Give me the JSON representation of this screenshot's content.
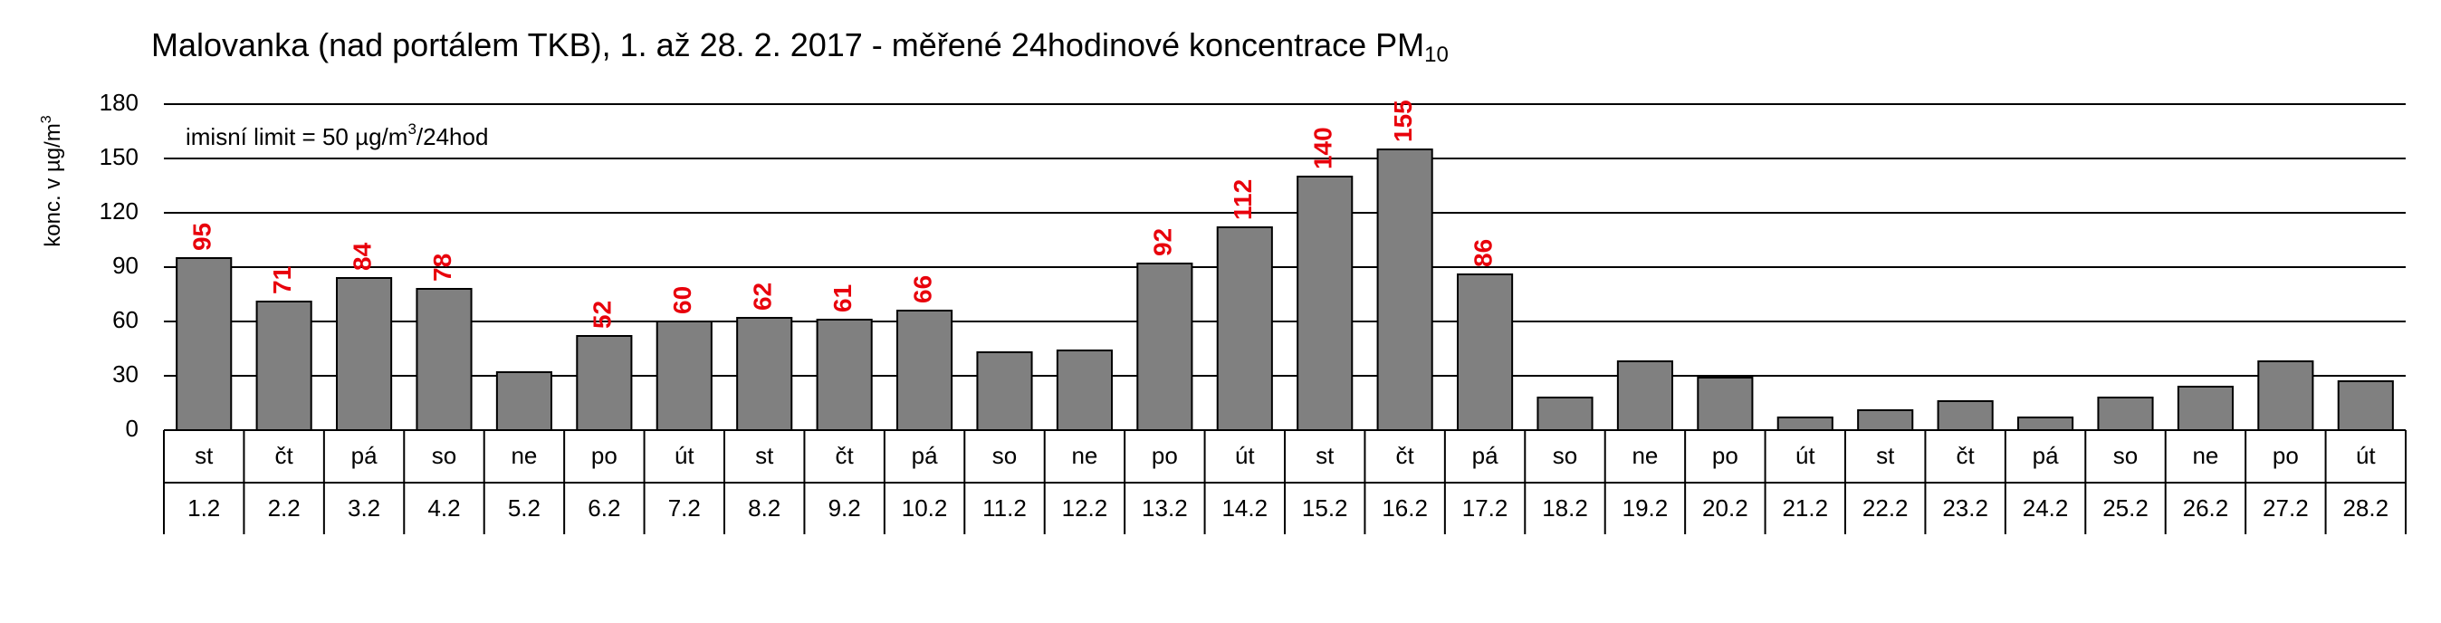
{
  "chart_data": {
    "type": "bar",
    "title": "Malovanka (nad portálem TKB), 1. až 28. 2. 2017 - měřené 24hodinové koncentrace PM",
    "title_subscript": "10",
    "y_label": "konc. v µg/m",
    "y_label_superscript": "3",
    "annotation": {
      "text": "imisní limit = 50 µg/m",
      "superscript": "3",
      "suffix": "/24hod"
    },
    "weekdays": [
      "st",
      "čt",
      "pá",
      "so",
      "ne",
      "po",
      "út",
      "st",
      "čt",
      "pá",
      "so",
      "ne",
      "po",
      "út",
      "st",
      "čt",
      "pá",
      "so",
      "ne",
      "po",
      "út",
      "st",
      "čt",
      "pá",
      "so",
      "ne",
      "po",
      "út"
    ],
    "categories": [
      "1.2",
      "2.2",
      "3.2",
      "4.2",
      "5.2",
      "6.2",
      "7.2",
      "8.2",
      "9.2",
      "10.2",
      "11.2",
      "12.2",
      "13.2",
      "14.2",
      "15.2",
      "16.2",
      "17.2",
      "18.2",
      "19.2",
      "20.2",
      "21.2",
      "22.2",
      "23.2",
      "24.2",
      "25.2",
      "26.2",
      "27.2",
      "28.2"
    ],
    "values": [
      95,
      71,
      84,
      78,
      32,
      52,
      60,
      62,
      61,
      66,
      43,
      44,
      92,
      112,
      140,
      155,
      86,
      18,
      38,
      29,
      7,
      11,
      16,
      7,
      18,
      24,
      38,
      27
    ],
    "value_labels": [
      "95",
      "71",
      "84",
      "78",
      null,
      "52",
      "60",
      "62",
      "61",
      "66",
      null,
      null,
      "92",
      "112",
      "140",
      "155",
      "86",
      null,
      null,
      null,
      null,
      null,
      null,
      null,
      null,
      null,
      null,
      null
    ],
    "color": "#808080",
    "label_color": "#e8000b",
    "ylim": [
      0,
      180
    ],
    "yticks": [
      0,
      30,
      60,
      90,
      120,
      150,
      180
    ],
    "grid": true
  }
}
